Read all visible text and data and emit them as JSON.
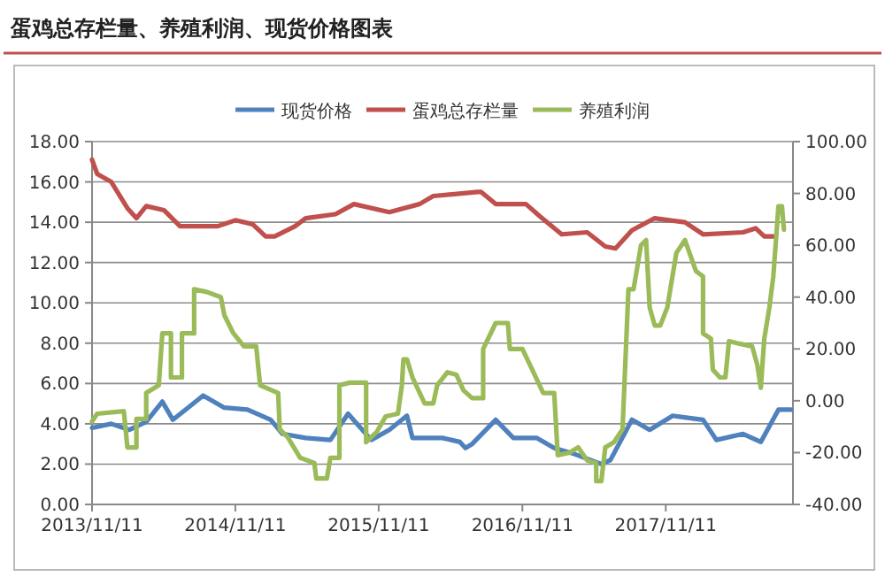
{
  "chart_data": {
    "type": "line",
    "title": "蛋鸡总存栏量、养殖利润、现货价格图表",
    "xlim": [
      "2013-11-11",
      "2018-10-01"
    ],
    "xticks": [
      {
        "value": "2013-11-11",
        "label": "2013/11/11"
      },
      {
        "value": "2014-11-11",
        "label": "2014/11/11"
      },
      {
        "value": "2015-11-11",
        "label": "2015/11/11"
      },
      {
        "value": "2016-11-11",
        "label": "2016/11/11"
      },
      {
        "value": "2017-11-11",
        "label": "2017/11/11"
      }
    ],
    "ylim": [
      0,
      18
    ],
    "yticks": [
      {
        "value": 0,
        "label": "0.00"
      },
      {
        "value": 2,
        "label": "2.00"
      },
      {
        "value": 4,
        "label": "4.00"
      },
      {
        "value": 6,
        "label": "6.00"
      },
      {
        "value": 8,
        "label": "8.00"
      },
      {
        "value": 10,
        "label": "10.00"
      },
      {
        "value": 12,
        "label": "12.00"
      },
      {
        "value": 14,
        "label": "14.00"
      },
      {
        "value": 16,
        "label": "16.00"
      },
      {
        "value": 18,
        "label": "18.00"
      }
    ],
    "y2lim": [
      -40,
      100
    ],
    "y2ticks": [
      {
        "value": -40,
        "label": "-40.00"
      },
      {
        "value": -20,
        "label": "-20.00"
      },
      {
        "value": 0,
        "label": "0.00"
      },
      {
        "value": 20,
        "label": "20.00"
      },
      {
        "value": 40,
        "label": "40.00"
      },
      {
        "value": 60,
        "label": "60.00"
      },
      {
        "value": 80,
        "label": "80.00"
      },
      {
        "value": 100,
        "label": "100.00"
      }
    ],
    "grid": "y",
    "legend": "top",
    "series": [
      {
        "name": "现货价格",
        "color": "#4f81bd",
        "x": [
          "2013-11-11",
          "2013-12-30",
          "2014-02-14",
          "2014-03-29",
          "2014-05-09",
          "2014-06-05",
          "2014-07-07",
          "2014-08-21",
          "2014-10-14",
          "2014-12-12",
          "2015-02-09",
          "2015-03-11",
          "2015-05-09",
          "2015-07-11",
          "2015-08-25",
          "2015-10-23",
          "2015-12-08",
          "2016-01-22",
          "2016-02-05",
          "2016-04-21",
          "2016-06-05",
          "2016-06-19",
          "2016-07-06",
          "2016-09-04",
          "2016-10-19",
          "2016-12-17",
          "2017-01-31",
          "2017-03-24",
          "2017-05-31",
          "2017-06-23",
          "2017-08-17",
          "2017-10-01",
          "2017-11-29",
          "2018-02-14",
          "2018-03-20",
          "2018-05-27",
          "2018-07-11",
          "2018-08-25",
          "2018-09-26"
        ],
        "values": [
          3.8,
          4.0,
          3.7,
          4.1,
          5.1,
          4.2,
          4.7,
          5.4,
          4.8,
          4.7,
          4.2,
          3.5,
          3.3,
          3.2,
          4.5,
          3.2,
          3.7,
          4.4,
          3.3,
          3.3,
          3.1,
          2.8,
          3.0,
          4.2,
          3.3,
          3.3,
          2.8,
          2.5,
          2.0,
          2.2,
          4.2,
          3.7,
          4.4,
          4.2,
          3.2,
          3.5,
          3.1,
          4.7,
          4.7
        ]
      },
      {
        "name": "蛋鸡总存栏量",
        "color": "#c0504d",
        "x": [
          "2013-11-11",
          "2013-11-24",
          "2013-12-30",
          "2014-02-09",
          "2014-03-04",
          "2014-03-29",
          "2014-05-13",
          "2014-06-23",
          "2014-09-27",
          "2014-11-11",
          "2014-12-25",
          "2015-01-27",
          "2015-02-19",
          "2015-04-12",
          "2015-05-09",
          "2015-07-24",
          "2015-09-09",
          "2015-12-08",
          "2016-02-23",
          "2016-03-29",
          "2016-07-20",
          "2016-07-29",
          "2016-09-04",
          "2016-11-20",
          "2016-12-25",
          "2017-02-19",
          "2017-04-25",
          "2017-06-10",
          "2017-07-06",
          "2017-08-17",
          "2017-10-14",
          "2017-12-30",
          "2018-02-14",
          "2018-05-27",
          "2018-06-28",
          "2018-07-20",
          "2018-08-12"
        ],
        "values": [
          17.1,
          16.4,
          16.0,
          14.7,
          14.2,
          14.8,
          14.6,
          13.8,
          13.8,
          14.1,
          13.9,
          13.3,
          13.3,
          13.8,
          14.2,
          14.4,
          14.9,
          14.5,
          14.9,
          15.3,
          15.5,
          15.5,
          14.9,
          14.9,
          14.3,
          13.4,
          13.5,
          12.8,
          12.7,
          13.6,
          14.2,
          14.0,
          13.4,
          13.5,
          13.7,
          13.3,
          13.3
        ]
      },
      {
        "name": "养殖利润",
        "color": "#9bbb59",
        "axis": "y2",
        "x": [
          "2013-11-11",
          "2013-11-24",
          "2014-01-31",
          "2014-02-09",
          "2014-03-04",
          "2014-03-04",
          "2014-03-29",
          "2014-03-29",
          "2014-04-30",
          "2014-05-09",
          "2014-05-31",
          "2014-05-31",
          "2014-06-28",
          "2014-06-28",
          "2014-07-29",
          "2014-07-29",
          "2014-08-30",
          "2014-10-05",
          "2014-10-14",
          "2014-11-06",
          "2014-12-03",
          "2015-01-03",
          "2015-01-13",
          "2015-02-28",
          "2015-03-04",
          "2015-03-24",
          "2015-04-25",
          "2015-05-31",
          "2015-06-05",
          "2015-07-02",
          "2015-07-11",
          "2015-08-03",
          "2015-08-03",
          "2015-08-30",
          "2015-10-10",
          "2015-10-10",
          "2015-11-06",
          "2015-11-29",
          "2015-12-30",
          "2016-01-09",
          "2016-01-13",
          "2016-01-22",
          "2016-02-05",
          "2016-03-07",
          "2016-03-29",
          "2016-04-08",
          "2016-05-04",
          "2016-05-27",
          "2016-06-14",
          "2016-07-06",
          "2016-08-03",
          "2016-08-03",
          "2016-09-04",
          "2016-10-05",
          "2016-10-10",
          "2016-11-11",
          "2016-12-03",
          "2017-01-03",
          "2017-01-31",
          "2017-02-09",
          "2017-03-11",
          "2017-04-02",
          "2017-04-25",
          "2017-05-18",
          "2017-05-18",
          "2017-05-31",
          "2017-06-10",
          "2017-07-02",
          "2017-07-24",
          "2017-08-08",
          "2017-08-21",
          "2017-09-09",
          "2017-09-22",
          "2017-10-01",
          "2017-10-14",
          "2017-10-28",
          "2017-11-15",
          "2017-12-08",
          "2017-12-30",
          "2018-01-13",
          "2018-01-27",
          "2018-02-14",
          "2018-02-14",
          "2018-03-06",
          "2018-03-11",
          "2018-03-29",
          "2018-04-12",
          "2018-04-21",
          "2018-05-18",
          "2018-06-19",
          "2018-07-02",
          "2018-07-11",
          "2018-07-20",
          "2018-08-02",
          "2018-08-12",
          "2018-08-25",
          "2018-09-03",
          "2018-09-08"
        ],
        "values": [
          -8,
          -5,
          -4,
          -18,
          -18,
          -7,
          -7,
          3,
          6,
          26,
          26,
          9,
          9,
          26,
          26,
          43,
          42,
          40,
          33,
          26,
          21,
          21,
          6,
          3,
          -11,
          -14,
          -22,
          -24,
          -30,
          -30,
          -22,
          -22,
          6,
          7,
          7,
          -16,
          -12,
          -6,
          -5,
          6,
          16,
          16,
          9,
          -1,
          -1,
          6,
          11,
          10,
          4,
          1,
          1,
          20,
          30,
          30,
          20,
          20,
          13,
          3,
          3,
          -21,
          -20,
          -18,
          -23,
          -24,
          -31,
          -31,
          -18,
          -16,
          -11,
          43,
          43,
          60,
          62,
          36,
          29,
          29,
          36,
          57,
          62,
          56,
          50,
          48,
          26,
          24,
          12,
          9,
          9,
          23,
          22,
          21,
          14,
          5,
          24,
          36,
          48,
          75,
          75,
          66
        ]
      }
    ]
  }
}
